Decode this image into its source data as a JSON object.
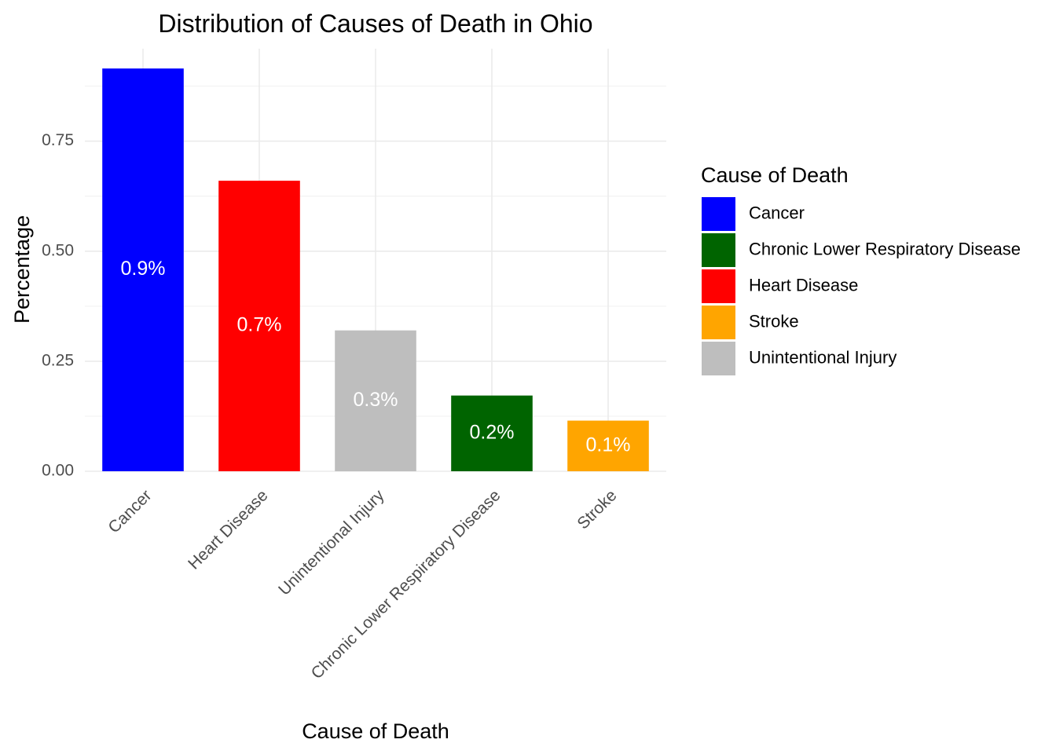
{
  "chart_data": {
    "type": "bar",
    "title": "Distribution of Causes of Death in Ohio",
    "xlabel": "Cause of Death",
    "ylabel": "Percentage",
    "categories": [
      "Cancer",
      "Heart Disease",
      "Unintentional Injury",
      "Chronic Lower Respiratory Disease",
      "Stroke"
    ],
    "values": [
      0.915,
      0.66,
      0.32,
      0.172,
      0.115
    ],
    "bar_labels": [
      "0.9%",
      "0.7%",
      "0.3%",
      "0.2%",
      "0.1%"
    ],
    "bar_colors": [
      "#0000ff",
      "#ff0000",
      "#bebebe",
      "#006400",
      "#ffa500"
    ],
    "yticks": [
      0,
      0.25,
      0.5,
      0.75
    ],
    "ytick_labels": [
      "0.00",
      "0.25",
      "0.50",
      "0.75"
    ],
    "ylim": [
      0,
      0.96
    ],
    "grid": true,
    "legend": {
      "title": "Cause of Death",
      "position": "right",
      "entries": [
        {
          "label": "Cancer",
          "color": "#0000ff"
        },
        {
          "label": "Chronic Lower Respiratory Disease",
          "color": "#006400"
        },
        {
          "label": "Heart Disease",
          "color": "#ff0000"
        },
        {
          "label": "Stroke",
          "color": "#ffa500"
        },
        {
          "label": "Unintentional Injury",
          "color": "#bebebe"
        }
      ]
    }
  }
}
